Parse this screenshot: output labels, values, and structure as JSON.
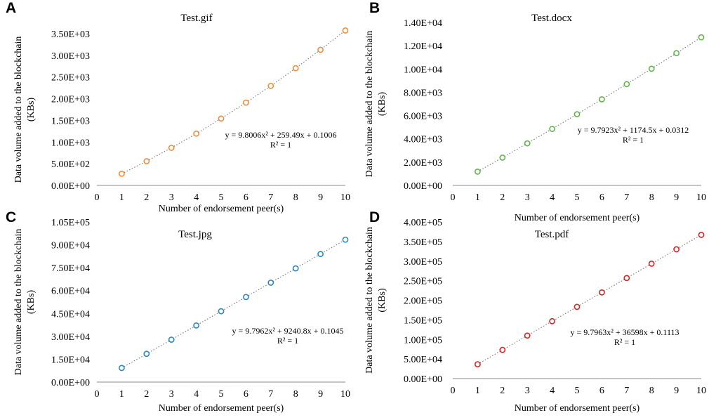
{
  "chart_data": [
    {
      "panel": "A",
      "type": "scatter",
      "title": "Test.gif",
      "xlabel": "Number of endorsement peer(s)",
      "ylabel": [
        "Data volume added to the blockchain",
        "(KBs)"
      ],
      "xlim": [
        0,
        10
      ],
      "ylim": [
        0,
        3500
      ],
      "x_ticks": [
        "0",
        "1",
        "2",
        "3",
        "4",
        "5",
        "6",
        "7",
        "8",
        "9",
        "10"
      ],
      "y_ticks": [
        "0.00E+00",
        "5.00E+02",
        "1.00E+03",
        "1.50E+03",
        "2.00E+03",
        "2.50E+03",
        "3.00E+03",
        "3.50E+03"
      ],
      "color": "#F08C3A",
      "x": [
        1,
        2,
        3,
        4,
        5,
        6,
        7,
        8,
        9,
        10
      ],
      "y": [
        269.4,
        558.2,
        866.7,
        1194.9,
        1542.6,
        1910.1,
        2297.2,
        2703.7,
        3129.9,
        3575.5
      ],
      "equation": "y = 9.8006x² + 259.49x + 0.1006",
      "r2": "R² = 1",
      "grid": false
    },
    {
      "panel": "B",
      "type": "scatter",
      "title": "Test.docx",
      "xlabel": "Number of endorsement peer(s)",
      "ylabel": [
        "Data volume added to the blockchain",
        "(KBs)"
      ],
      "xlim": [
        0,
        10
      ],
      "ylim": [
        0,
        14000
      ],
      "x_ticks": [
        "0",
        "1",
        "2",
        "3",
        "4",
        "5",
        "6",
        "7",
        "8",
        "9",
        "10"
      ],
      "y_ticks": [
        "0.00E+00",
        "2.00E+03",
        "4.00E+03",
        "6.00E+03",
        "8.00E+03",
        "1.00E+04",
        "1.20E+04",
        "1.40E+04"
      ],
      "color": "#5FB548",
      "x": [
        1,
        2,
        3,
        4,
        5,
        6,
        7,
        8,
        9,
        10
      ],
      "y": [
        1184.3,
        2388.2,
        3611.7,
        4854.8,
        6117.4,
        7399.6,
        8701.3,
        10022.6,
        11363.4,
        12723.8
      ],
      "equation": "y = 9.7923x² + 1174.5x + 0.0312",
      "r2": "R² = 1",
      "grid": false
    },
    {
      "panel": "C",
      "type": "scatter",
      "title": "Test.jpg",
      "xlabel": "Number of endorsement peer(s)",
      "ylabel": [
        "Data volume added to the blockchain",
        "(KBs)"
      ],
      "xlim": [
        0,
        10
      ],
      "ylim": [
        0,
        105000
      ],
      "x_ticks": [
        "0",
        "1",
        "2",
        "3",
        "4",
        "5",
        "6",
        "7",
        "8",
        "9",
        "10"
      ],
      "y_ticks": [
        "0.00E+00",
        "1.50E+04",
        "3.00E+04",
        "4.50E+04",
        "6.00E+04",
        "7.50E+04",
        "9.00E+04",
        "1.05E+05"
      ],
      "color": "#2E86C1",
      "x": [
        1,
        2,
        3,
        4,
        5,
        6,
        7,
        8,
        9,
        10
      ],
      "y": [
        9250.7,
        18520.8,
        27810.3,
        37119.3,
        46447.8,
        55795.8,
        65163.3,
        74550.3,
        83956.8,
        93382.7
      ],
      "equation": "y = 9.7962x² + 9240.8x + 0.1045",
      "r2": "R² = 1",
      "grid": false
    },
    {
      "panel": "D",
      "type": "scatter",
      "title": "Test.pdf",
      "xlabel": "Number of endorsement peer(s)",
      "ylabel": [
        "Data volume added to the blockchain",
        "(KBs)"
      ],
      "xlim": [
        0,
        10
      ],
      "ylim": [
        0,
        400000
      ],
      "x_ticks": [
        "0",
        "1",
        "2",
        "3",
        "4",
        "5",
        "6",
        "7",
        "8",
        "9",
        "10"
      ],
      "y_ticks": [
        "0.00E+00",
        "5.00E+04",
        "1.00E+05",
        "1.50E+05",
        "2.00E+05",
        "2.50E+05",
        "3.00E+05",
        "3.50E+05",
        "4.00E+05"
      ],
      "color": "#E0201F",
      "x": [
        1,
        2,
        3,
        4,
        5,
        6,
        7,
        8,
        9,
        10
      ],
      "y": [
        36607.9,
        73235.3,
        109882.3,
        146548.8,
        183234.9,
        219940.5,
        256665.6,
        293410.4,
        330174.5,
        366958.4
      ],
      "equation": "y = 9.7963x² + 36598x + 0.1113",
      "r2": "R² = 1",
      "grid": false
    }
  ]
}
